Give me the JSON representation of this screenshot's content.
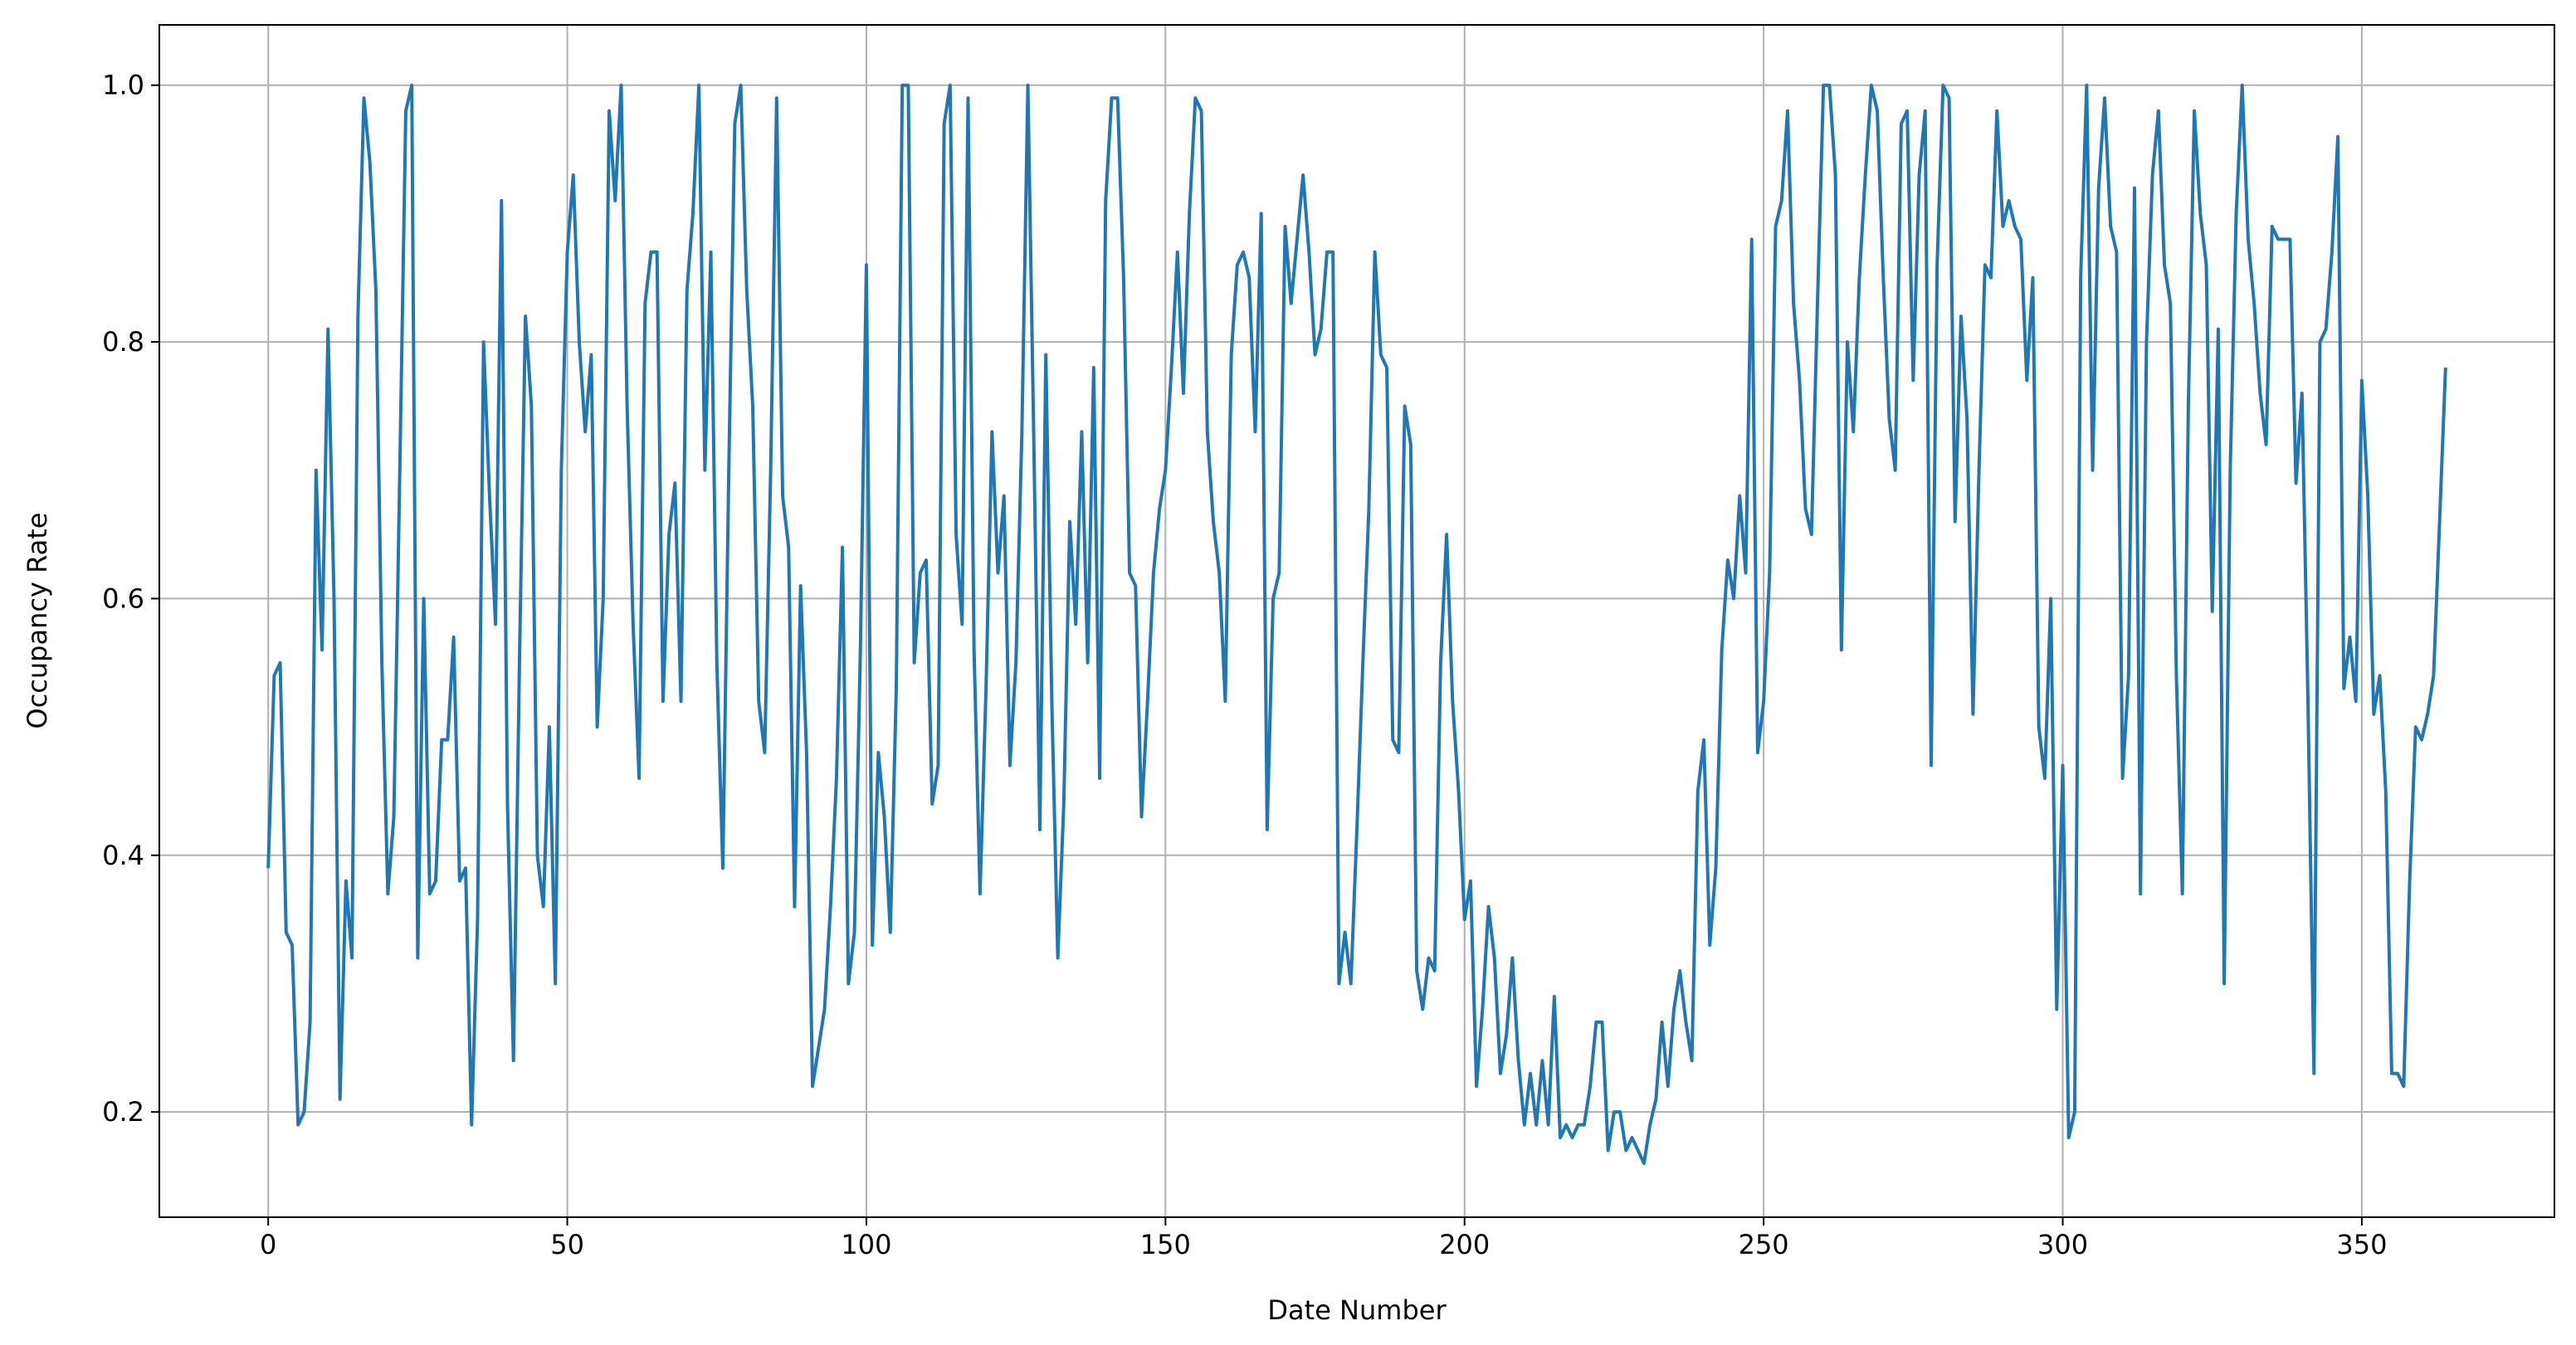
{
  "chart_data": {
    "type": "line",
    "xlabel": "Date Number",
    "ylabel": "Occupancy Rate",
    "color": "#1f77b4",
    "grid": true,
    "xlim": [
      -18.2,
      382.2
    ],
    "ylim": [
      0.118,
      1.047
    ],
    "xticks": [
      0,
      50,
      100,
      150,
      200,
      250,
      300,
      350
    ],
    "yticks": [
      0.2,
      0.4,
      0.6,
      0.8,
      {
        "value": 1,
        "label": "1.0"
      }
    ],
    "x": [
      0,
      1,
      2,
      3,
      4,
      5,
      6,
      7,
      8,
      9,
      10,
      11,
      12,
      13,
      14,
      15,
      16,
      17,
      18,
      19,
      20,
      21,
      22,
      23,
      24,
      25,
      26,
      27,
      28,
      29,
      30,
      31,
      32,
      33,
      34,
      35,
      36,
      37,
      38,
      39,
      40,
      41,
      42,
      43,
      44,
      45,
      46,
      47,
      48,
      49,
      50,
      51,
      52,
      53,
      54,
      55,
      56,
      57,
      58,
      59,
      60,
      61,
      62,
      63,
      64,
      65,
      66,
      67,
      68,
      69,
      70,
      71,
      72,
      73,
      74,
      75,
      76,
      77,
      78,
      79,
      80,
      81,
      82,
      83,
      84,
      85,
      86,
      87,
      88,
      89,
      90,
      91,
      92,
      93,
      94,
      95,
      96,
      97,
      98,
      99,
      100,
      101,
      102,
      103,
      104,
      105,
      106,
      107,
      108,
      109,
      110,
      111,
      112,
      113,
      114,
      115,
      116,
      117,
      118,
      119,
      120,
      121,
      122,
      123,
      124,
      125,
      126,
      127,
      128,
      129,
      130,
      131,
      132,
      133,
      134,
      135,
      136,
      137,
      138,
      139,
      140,
      141,
      142,
      143,
      144,
      145,
      146,
      147,
      148,
      149,
      150,
      151,
      152,
      153,
      154,
      155,
      156,
      157,
      158,
      159,
      160,
      161,
      162,
      163,
      164,
      165,
      166,
      167,
      168,
      169,
      170,
      171,
      172,
      173,
      174,
      175,
      176,
      177,
      178,
      179,
      180,
      181,
      182,
      183,
      184,
      185,
      186,
      187,
      188,
      189,
      190,
      191,
      192,
      193,
      194,
      195,
      196,
      197,
      198,
      199,
      200,
      201,
      202,
      203,
      204,
      205,
      206,
      207,
      208,
      209,
      210,
      211,
      212,
      213,
      214,
      215,
      216,
      217,
      218,
      219,
      220,
      221,
      222,
      223,
      224,
      225,
      226,
      227,
      228,
      229,
      230,
      231,
      232,
      233,
      234,
      235,
      236,
      237,
      238,
      239,
      240,
      241,
      242,
      243,
      244,
      245,
      246,
      247,
      248,
      249,
      250,
      251,
      252,
      253,
      254,
      255,
      256,
      257,
      258,
      259,
      260,
      261,
      262,
      263,
      264,
      265,
      266,
      267,
      268,
      269,
      270,
      271,
      272,
      273,
      274,
      275,
      276,
      277,
      278,
      279,
      280,
      281,
      282,
      283,
      284,
      285,
      286,
      287,
      288,
      289,
      290,
      291,
      292,
      293,
      294,
      295,
      296,
      297,
      298,
      299,
      300,
      301,
      302,
      303,
      304,
      305,
      306,
      307,
      308,
      309,
      310,
      311,
      312,
      313,
      314,
      315,
      316,
      317,
      318,
      319,
      320,
      321,
      322,
      323,
      324,
      325,
      326,
      327,
      328,
      329,
      330,
      331,
      332,
      333,
      334,
      335,
      336,
      337,
      338,
      339,
      340,
      341,
      342,
      343,
      344,
      345,
      346,
      347,
      348,
      349,
      350,
      351,
      352,
      353,
      354,
      355,
      356,
      357,
      358,
      359,
      360,
      361,
      362,
      363,
      364
    ],
    "values": [
      0.39,
      0.54,
      0.55,
      0.34,
      0.33,
      0.19,
      0.2,
      0.27,
      0.7,
      0.56,
      0.81,
      0.6,
      0.21,
      0.38,
      0.32,
      0.82,
      0.99,
      0.94,
      0.84,
      0.55,
      0.37,
      0.43,
      0.7,
      0.98,
      1.0,
      0.32,
      0.6,
      0.37,
      0.38,
      0.49,
      0.49,
      0.57,
      0.38,
      0.39,
      0.19,
      0.35,
      0.8,
      0.68,
      0.58,
      0.91,
      0.44,
      0.24,
      0.55,
      0.82,
      0.75,
      0.4,
      0.36,
      0.5,
      0.3,
      0.7,
      0.87,
      0.93,
      0.8,
      0.73,
      0.79,
      0.5,
      0.6,
      0.98,
      0.91,
      1.0,
      0.75,
      0.58,
      0.46,
      0.83,
      0.87,
      0.87,
      0.52,
      0.65,
      0.69,
      0.52,
      0.84,
      0.9,
      1.0,
      0.7,
      0.87,
      0.55,
      0.39,
      0.7,
      0.97,
      1.0,
      0.84,
      0.75,
      0.52,
      0.48,
      0.7,
      0.99,
      0.68,
      0.64,
      0.36,
      0.61,
      0.48,
      0.22,
      0.25,
      0.28,
      0.36,
      0.46,
      0.64,
      0.3,
      0.34,
      0.56,
      0.86,
      0.33,
      0.48,
      0.43,
      0.34,
      0.53,
      1.0,
      1.0,
      0.55,
      0.62,
      0.63,
      0.44,
      0.47,
      0.97,
      1.0,
      0.65,
      0.58,
      0.99,
      0.56,
      0.37,
      0.53,
      0.73,
      0.62,
      0.68,
      0.47,
      0.55,
      0.73,
      1.0,
      0.72,
      0.42,
      0.79,
      0.52,
      0.32,
      0.44,
      0.66,
      0.58,
      0.73,
      0.55,
      0.78,
      0.46,
      0.91,
      0.99,
      0.99,
      0.85,
      0.62,
      0.61,
      0.43,
      0.52,
      0.62,
      0.67,
      0.7,
      0.78,
      0.87,
      0.76,
      0.9,
      0.99,
      0.98,
      0.73,
      0.66,
      0.62,
      0.52,
      0.79,
      0.86,
      0.87,
      0.85,
      0.73,
      0.9,
      0.42,
      0.6,
      0.62,
      0.89,
      0.83,
      0.88,
      0.93,
      0.87,
      0.79,
      0.81,
      0.87,
      0.87,
      0.3,
      0.34,
      0.3,
      0.42,
      0.55,
      0.67,
      0.87,
      0.79,
      0.78,
      0.49,
      0.48,
      0.75,
      0.72,
      0.31,
      0.28,
      0.32,
      0.31,
      0.55,
      0.65,
      0.52,
      0.45,
      0.35,
      0.38,
      0.22,
      0.28,
      0.36,
      0.32,
      0.23,
      0.26,
      0.32,
      0.24,
      0.19,
      0.23,
      0.19,
      0.24,
      0.19,
      0.29,
      0.18,
      0.19,
      0.18,
      0.19,
      0.19,
      0.22,
      0.27,
      0.27,
      0.17,
      0.2,
      0.2,
      0.17,
      0.18,
      0.17,
      0.16,
      0.19,
      0.21,
      0.27,
      0.22,
      0.28,
      0.31,
      0.27,
      0.24,
      0.45,
      0.49,
      0.33,
      0.39,
      0.56,
      0.63,
      0.6,
      0.68,
      0.62,
      0.88,
      0.48,
      0.52,
      0.62,
      0.89,
      0.91,
      0.98,
      0.83,
      0.77,
      0.67,
      0.65,
      0.83,
      1.0,
      1.0,
      0.93,
      0.56,
      0.8,
      0.73,
      0.85,
      0.93,
      1.0,
      0.98,
      0.85,
      0.74,
      0.7,
      0.97,
      0.98,
      0.77,
      0.93,
      0.98,
      0.47,
      0.86,
      1.0,
      0.99,
      0.66,
      0.82,
      0.74,
      0.51,
      0.7,
      0.86,
      0.85,
      0.98,
      0.89,
      0.91,
      0.89,
      0.88,
      0.77,
      0.85,
      0.5,
      0.46,
      0.6,
      0.28,
      0.47,
      0.18,
      0.2,
      0.85,
      1.0,
      0.7,
      0.92,
      0.99,
      0.89,
      0.87,
      0.46,
      0.54,
      0.92,
      0.37,
      0.8,
      0.93,
      0.98,
      0.86,
      0.83,
      0.54,
      0.37,
      0.75,
      0.98,
      0.9,
      0.86,
      0.59,
      0.81,
      0.3,
      0.7,
      0.9,
      1.0,
      0.88,
      0.83,
      0.76,
      0.72,
      0.89,
      0.88,
      0.88,
      0.88,
      0.69,
      0.76,
      0.52,
      0.23,
      0.8,
      0.81,
      0.87,
      0.96,
      0.53,
      0.57,
      0.52,
      0.77,
      0.68,
      0.51,
      0.54,
      0.45,
      0.23,
      0.23,
      0.22,
      0.38,
      0.5,
      0.49,
      0.51,
      0.54,
      0.66,
      0.78
    ]
  }
}
